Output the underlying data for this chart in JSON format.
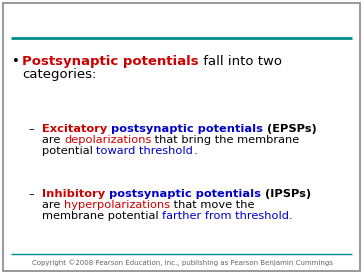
{
  "bg_color": "#ffffff",
  "teal_color": "#008B8B",
  "border_color": "#888888",
  "copyright_text": "Copyright ©2008 Pearson Education, Inc., publishing as Pearson Benjamin Cummings",
  "copyright_fontsize": 5.0,
  "copyright_color": "#666666",
  "main_bullet_fontsize": 9.5,
  "sub_bullet_fontsize": 8.2,
  "main_parts_line1": [
    {
      "text": "Postsynaptic potentials",
      "color": "#CC0000",
      "bold": true
    },
    {
      "text": " fall into two",
      "color": "#000000",
      "bold": false
    }
  ],
  "main_parts_line2": [
    {
      "text": "categories:",
      "color": "#000000",
      "bold": false
    }
  ],
  "sub1_lines": [
    [
      {
        "text": "Excitatory",
        "color": "#CC0000",
        "bold": true
      },
      {
        "text": " postsynaptic potentials",
        "color": "#0000CC",
        "bold": true
      },
      {
        "text": " (EPSPs)",
        "color": "#000000",
        "bold": true
      }
    ],
    [
      {
        "text": "are ",
        "color": "#000000",
        "bold": false
      },
      {
        "text": "depolarizations",
        "color": "#CC0000",
        "bold": false
      },
      {
        "text": " that bring the membrane",
        "color": "#000000",
        "bold": false
      }
    ],
    [
      {
        "text": "potential ",
        "color": "#000000",
        "bold": false
      },
      {
        "text": "toward threshold",
        "color": "#0000CC",
        "bold": false
      },
      {
        "text": ".",
        "color": "#000000",
        "bold": false
      }
    ]
  ],
  "sub2_lines": [
    [
      {
        "text": "Inhibitory",
        "color": "#CC0000",
        "bold": true
      },
      {
        "text": " postsynaptic potentials",
        "color": "#0000CC",
        "bold": true
      },
      {
        "text": " (IPSPs)",
        "color": "#000000",
        "bold": true
      }
    ],
    [
      {
        "text": "are ",
        "color": "#000000",
        "bold": false
      },
      {
        "text": "hyperpolarizations",
        "color": "#CC0000",
        "bold": false
      },
      {
        "text": " that move the",
        "color": "#000000",
        "bold": false
      }
    ],
    [
      {
        "text": "membrane potential ",
        "color": "#000000",
        "bold": false
      },
      {
        "text": "farther from threshold",
        "color": "#0000CC",
        "bold": false
      },
      {
        "text": ".",
        "color": "#000000",
        "bold": false
      }
    ]
  ]
}
